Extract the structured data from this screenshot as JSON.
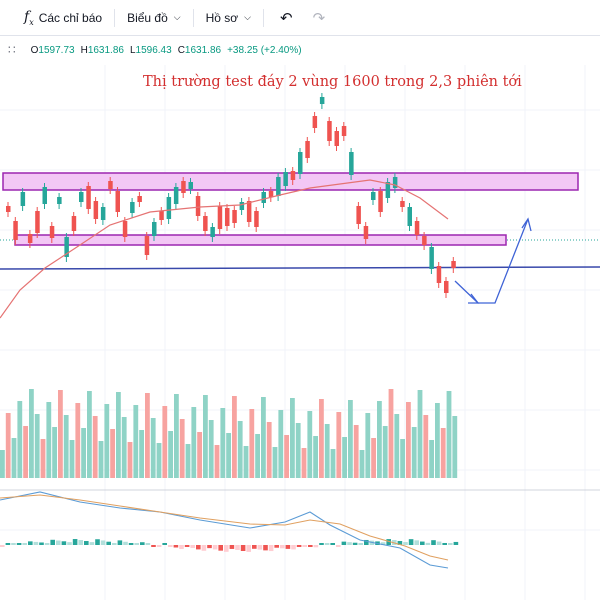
{
  "toolbar": {
    "indicators_label": "Các chỉ báo",
    "chart_label": "Biểu đồ",
    "profile_label": "Hồ sơ"
  },
  "ohlc": {
    "open_label": "O",
    "open": "1597.73",
    "high_label": "H",
    "high": "1631.86",
    "low_label": "L",
    "low": "1596.43",
    "close_label": "C",
    "close": "1631.86",
    "change": "+38.25 (+2.40%)"
  },
  "annotation": "Thị trường test đáy 2 vùng 1600 trong 2,3 phiên tới",
  "colors": {
    "up": "#26a69a",
    "down": "#ef5350",
    "vol_up": "#8fd3c6",
    "vol_down": "#f7a3a0",
    "zone_fill": "#f3c7f5",
    "zone_stroke": "#9c27b0",
    "support_line": "#3949ab",
    "ma_line": "#e57373",
    "arrow": "#3f63d6",
    "macd_line": "#5b9bd5",
    "signal_line": "#e0a060"
  },
  "icons": [
    "fx-icon",
    "chevron-down-icon",
    "undo-icon",
    "redo-icon"
  ]
}
